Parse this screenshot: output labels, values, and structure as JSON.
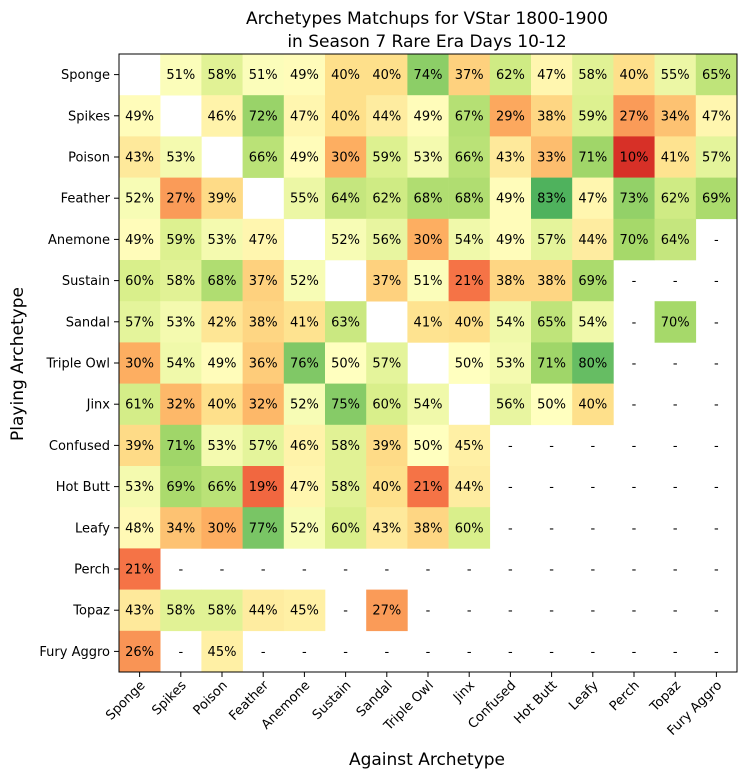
{
  "chart_data": {
    "type": "heatmap",
    "title_line1": "Archetypes Matchups for VStar 1800-1900",
    "title_line2": "in Season 7 Rare Era Days 10-12",
    "xlabel": "Against Archetype",
    "ylabel": "Playing Archetype",
    "x_categories": [
      "Sponge",
      "Spikes",
      "Poison",
      "Feather",
      "Anemone",
      "Sustain",
      "Sandal",
      "Triple Owl",
      "Jinx",
      "Confused",
      "Hot Butt",
      "Leafy",
      "Perch",
      "Topaz",
      "Fury Aggro"
    ],
    "y_categories": [
      "Sponge",
      "Spikes",
      "Poison",
      "Feather",
      "Anemone",
      "Sustain",
      "Sandal",
      "Triple Owl",
      "Jinx",
      "Confused",
      "Hot Butt",
      "Leafy",
      "Perch",
      "Topaz",
      "Fury Aggro"
    ],
    "value_range": [
      0,
      100
    ],
    "colormap": "RdYlGn",
    "missing_label": "-",
    "unit_suffix": "%",
    "values": [
      [
        null,
        51,
        58,
        51,
        49,
        40,
        40,
        74,
        37,
        62,
        47,
        58,
        40,
        55,
        65
      ],
      [
        49,
        null,
        46,
        72,
        47,
        40,
        44,
        49,
        67,
        29,
        38,
        59,
        27,
        34,
        47
      ],
      [
        43,
        53,
        null,
        66,
        49,
        30,
        59,
        53,
        66,
        43,
        33,
        71,
        10,
        41,
        57
      ],
      [
        52,
        27,
        39,
        null,
        55,
        64,
        62,
        68,
        68,
        49,
        83,
        47,
        73,
        62,
        69
      ],
      [
        49,
        59,
        53,
        47,
        null,
        52,
        56,
        30,
        54,
        49,
        57,
        44,
        70,
        64,
        null
      ],
      [
        60,
        58,
        68,
        37,
        52,
        null,
        37,
        51,
        21,
        38,
        38,
        69,
        null,
        null,
        null
      ],
      [
        57,
        53,
        42,
        38,
        41,
        63,
        null,
        41,
        40,
        54,
        65,
        54,
        null,
        70,
        null
      ],
      [
        30,
        54,
        49,
        36,
        76,
        50,
        57,
        null,
        50,
        53,
        71,
        80,
        null,
        null,
        null
      ],
      [
        61,
        32,
        40,
        32,
        52,
        75,
        60,
        54,
        null,
        56,
        50,
        40,
        null,
        null,
        null
      ],
      [
        39,
        71,
        53,
        57,
        46,
        58,
        39,
        50,
        45,
        null,
        null,
        null,
        null,
        null,
        null
      ],
      [
        53,
        69,
        66,
        19,
        47,
        58,
        40,
        21,
        44,
        null,
        null,
        null,
        null,
        null,
        null
      ],
      [
        48,
        34,
        30,
        77,
        52,
        60,
        43,
        38,
        60,
        null,
        null,
        null,
        null,
        null,
        null
      ],
      [
        21,
        null,
        null,
        null,
        null,
        null,
        null,
        null,
        null,
        null,
        null,
        null,
        null,
        null,
        null
      ],
      [
        43,
        58,
        58,
        44,
        45,
        null,
        27,
        null,
        null,
        null,
        null,
        null,
        null,
        null,
        null
      ],
      [
        26,
        null,
        45,
        null,
        null,
        null,
        null,
        null,
        null,
        null,
        null,
        null,
        null,
        null,
        null
      ]
    ],
    "blank_cells": [
      [
        0,
        0
      ],
      [
        1,
        1
      ],
      [
        2,
        2
      ],
      [
        3,
        3
      ],
      [
        4,
        4
      ],
      [
        5,
        5
      ],
      [
        6,
        6
      ],
      [
        7,
        7
      ],
      [
        8,
        8
      ]
    ]
  }
}
